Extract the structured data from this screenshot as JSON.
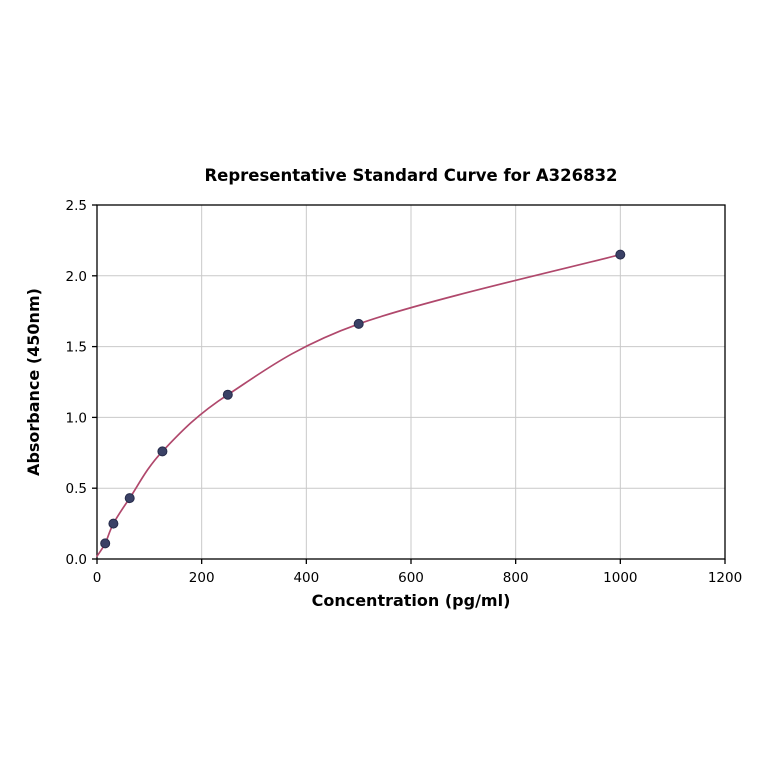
{
  "chart_data": {
    "type": "scatter",
    "title": "Representative Standard Curve for A326832",
    "xlabel": "Concentration (pg/ml)",
    "ylabel": "Absorbance (450nm)",
    "x": [
      15.6,
      31.25,
      62.5,
      125,
      250,
      500,
      1000
    ],
    "y": [
      0.11,
      0.25,
      0.43,
      0.76,
      1.16,
      1.66,
      2.15
    ],
    "curve_start": [
      0,
      0.02
    ],
    "xlim": [
      0,
      1200
    ],
    "ylim": [
      0,
      2.5
    ],
    "x_ticks": [
      0,
      200,
      400,
      600,
      800,
      1000,
      1200
    ],
    "x_tick_labels": [
      "0",
      "200",
      "400",
      "600",
      "800",
      "1000",
      "1200"
    ],
    "y_ticks": [
      0,
      0.5,
      1.0,
      1.5,
      2.0,
      2.5
    ],
    "y_tick_labels": [
      "0.0",
      "0.5",
      "1.0",
      "1.5",
      "2.0",
      "2.5"
    ],
    "grid": true,
    "legend": "none",
    "line_color": "#b0486c",
    "marker_color": "#3a4166",
    "marker_edge_color": "#262b4a",
    "background_color": "#ffffff"
  }
}
